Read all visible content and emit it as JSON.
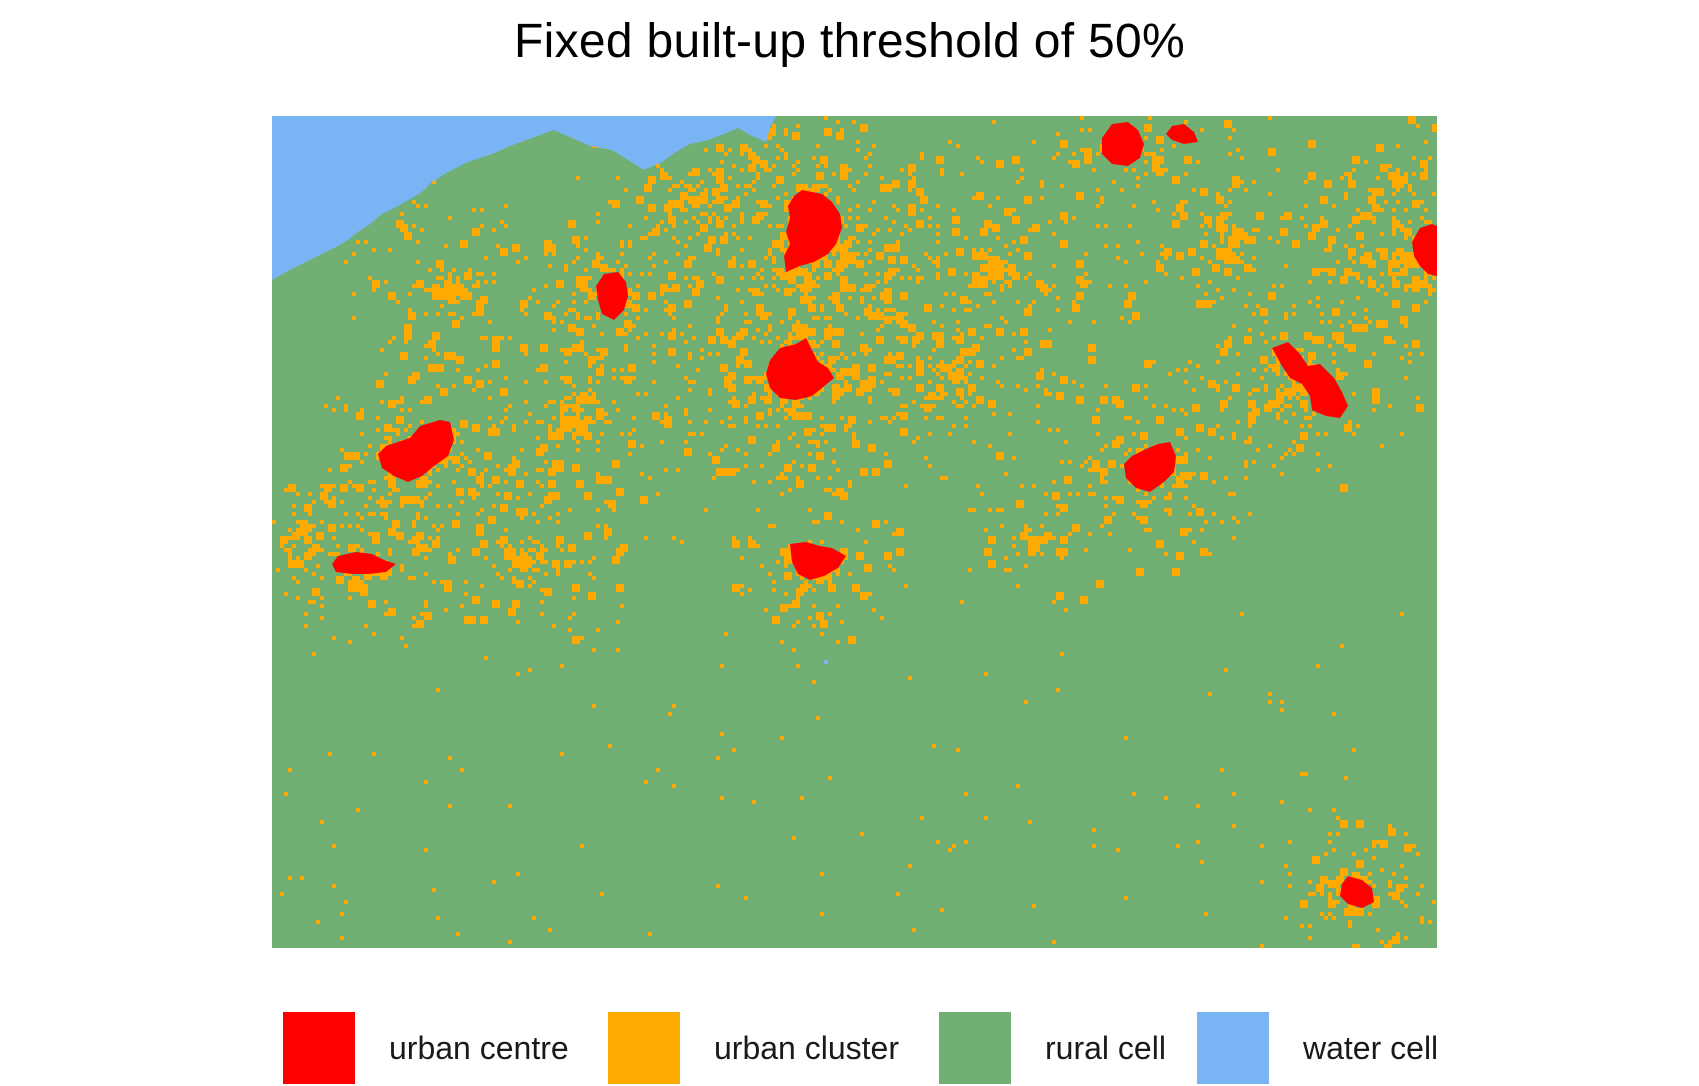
{
  "title": "Fixed built-up threshold of 50%",
  "colors": {
    "urban_centre": "#ff0000",
    "urban_cluster": "#ffaa00",
    "rural_cell": "#71b072",
    "water_cell": "#7ab4f5"
  },
  "legend": [
    {
      "key": "urban_centre",
      "label": "urban centre",
      "color": "#ff0000"
    },
    {
      "key": "urban_cluster",
      "label": "urban cluster",
      "color": "#ffaa00"
    },
    {
      "key": "rural_cell",
      "label": "rural cell",
      "color": "#71b072"
    },
    {
      "key": "water_cell",
      "label": "water cell",
      "color": "#7ab4f5"
    }
  ]
}
